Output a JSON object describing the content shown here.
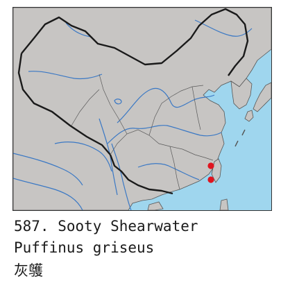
{
  "map": {
    "land_color": "#c7c5c3",
    "sea_color": "#9fd6ee",
    "border_color": "#1a1a1a",
    "river_color": "#3a78c4",
    "record_marker_color": "#e0141e",
    "record_icon": "red-dot",
    "record_count": 2
  },
  "caption": {
    "line_1": "587. Sooty Shearwater",
    "line_2": "Puffinus griseus",
    "line_3": "灰鹱"
  }
}
